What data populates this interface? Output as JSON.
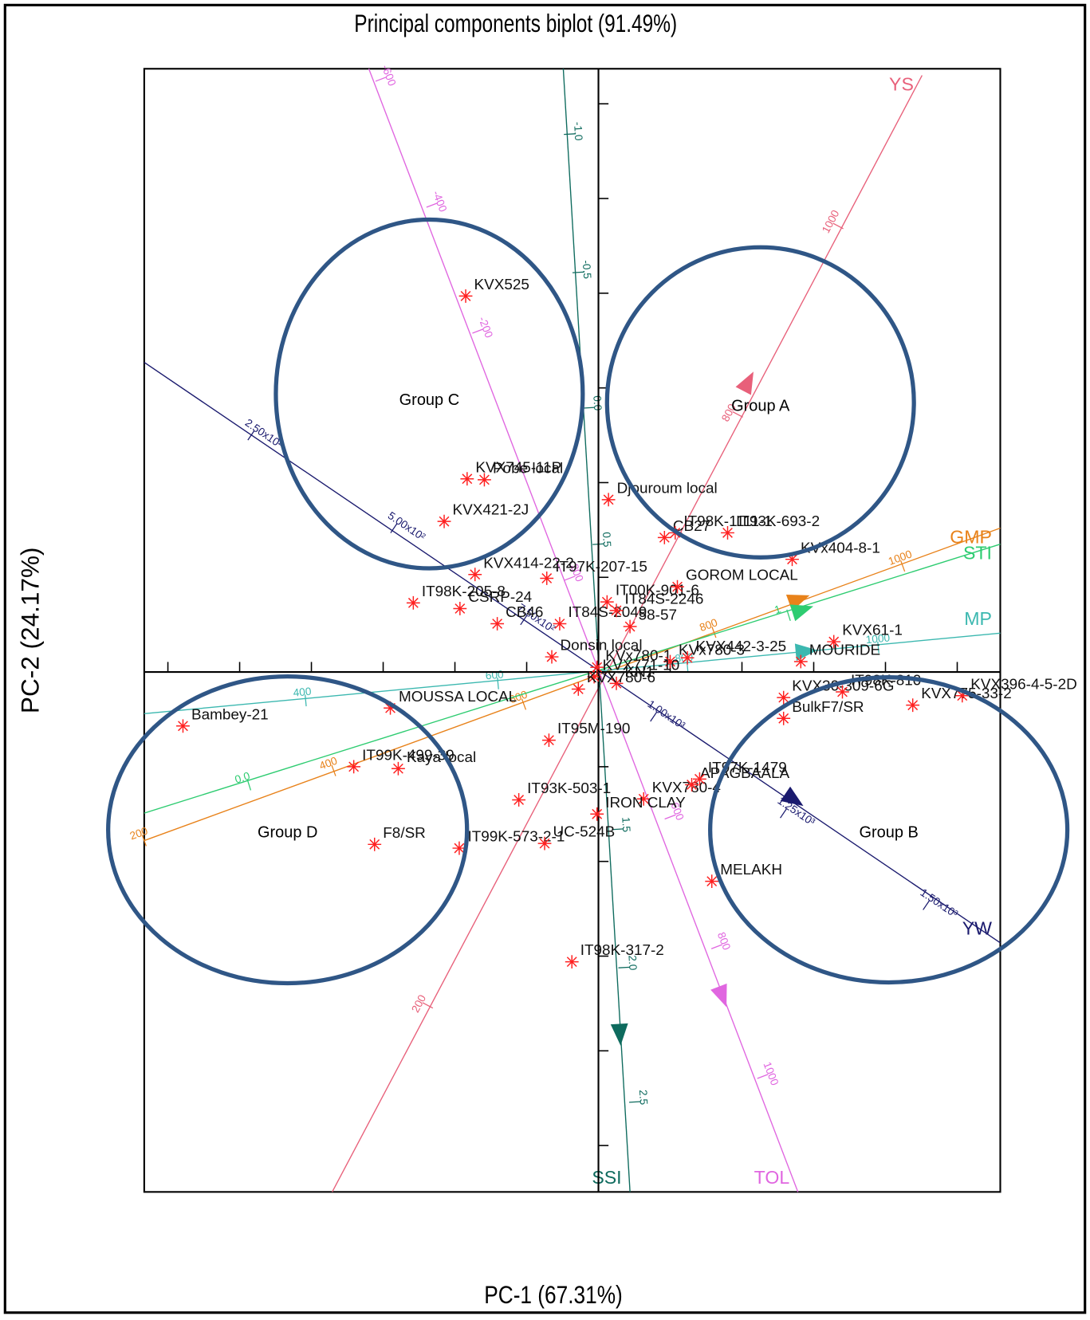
{
  "chart_data": {
    "type": "biplot",
    "title": "Principal components biplot (91.49%)",
    "x_label": "PC-1 (67.31%)",
    "y_label": "PC-2 (24.17%)",
    "xlim": [
      -6.33,
      5.6
    ],
    "ylim": [
      -5.49,
      6.37
    ],
    "xticks": [
      -6,
      -5,
      -4,
      -3,
      -2,
      -1,
      1,
      2,
      3,
      4,
      5
    ],
    "yticks": [
      -5,
      -4,
      -3,
      -2,
      -1,
      1,
      2,
      3,
      4,
      5,
      6
    ],
    "point_color": "#ff2020",
    "points": [
      {
        "label": "KVX525",
        "x": -1.85,
        "y": 3.97
      },
      {
        "label": "KVX745-11P",
        "x": -1.83,
        "y": 2.04
      },
      {
        "label": "Pobe local",
        "x": -1.59,
        "y": 2.03
      },
      {
        "label": "KVX421-2J",
        "x": -2.15,
        "y": 1.59
      },
      {
        "label": "KVX414-22-2",
        "x": -1.72,
        "y": 1.03
      },
      {
        "label": "IT97K-207-15",
        "x": -0.72,
        "y": 0.99
      },
      {
        "label": "IT98K-205-8",
        "x": -2.58,
        "y": 0.73
      },
      {
        "label": "CSRP-24",
        "x": -1.93,
        "y": 0.67
      },
      {
        "label": "CB46",
        "x": -1.41,
        "y": 0.51
      },
      {
        "label": "IT84S-2049",
        "x": -0.54,
        "y": 0.51
      },
      {
        "label": "IT00K-901-6",
        "x": 0.12,
        "y": 0.74
      },
      {
        "label": "IT84S-2246",
        "x": 0.25,
        "y": 0.65
      },
      {
        "label": "GOROM LOCAL",
        "x": 1.1,
        "y": 0.9
      },
      {
        "label": "58-57",
        "x": 0.44,
        "y": 0.48
      },
      {
        "label": "Donsin local",
        "x": -0.65,
        "y": 0.16
      },
      {
        "label": "Djouroum local",
        "x": 0.14,
        "y": 1.82
      },
      {
        "label": "CB27",
        "x": 0.92,
        "y": 1.42
      },
      {
        "label": "IT98K-1111-1",
        "x": 1.07,
        "y": 1.47
      },
      {
        "label": "IT93K-693-2",
        "x": 1.8,
        "y": 1.47
      },
      {
        "label": "KVx404-8-1",
        "x": 2.7,
        "y": 1.19
      },
      {
        "label": "KVX61-1",
        "x": 3.28,
        "y": 0.32
      },
      {
        "label": "MOURIDE",
        "x": 2.82,
        "y": 0.11
      },
      {
        "label": "KVx780-1",
        "x": -0.02,
        "y": 0.05
      },
      {
        "label": "KVx780-3",
        "x": 1.0,
        "y": 0.11
      },
      {
        "label": "KVX442-3-25",
        "x": 1.24,
        "y": 0.15
      },
      {
        "label": "KVX771-10",
        "x": -0.06,
        "y": -0.05
      },
      {
        "label": "KN1",
        "x": 0.25,
        "y": -0.12
      },
      {
        "label": "KVX30-309-6G",
        "x": 2.58,
        "y": -0.27
      },
      {
        "label": "IT98K-810",
        "x": 3.4,
        "y": -0.21
      },
      {
        "label": "BulkF7/SR",
        "x": 2.58,
        "y": -0.49
      },
      {
        "label": "KVX775-33-2",
        "x": 4.38,
        "y": -0.35
      },
      {
        "label": "KVX396-4-5-2D",
        "x": 5.07,
        "y": -0.25
      },
      {
        "label": "KVX780-6",
        "x": -0.28,
        "y": -0.18
      },
      {
        "label": "IT95M-190",
        "x": -0.69,
        "y": -0.72
      },
      {
        "label": "MOUSSA LOCAL",
        "x": -2.9,
        "y": -0.38
      },
      {
        "label": "Bambey-21",
        "x": -5.79,
        "y": -0.57
      },
      {
        "label": "IT99K-499-39",
        "x": -3.41,
        "y": -1.0
      },
      {
        "label": "Kaya local",
        "x": -2.79,
        "y": -1.02
      },
      {
        "label": "F8/SR",
        "x": -3.12,
        "y": -1.82
      },
      {
        "label": "IT99K-573-2-1",
        "x": -1.94,
        "y": -1.86
      },
      {
        "label": "UC-524B",
        "x": -0.75,
        "y": -1.81
      },
      {
        "label": "IT93K-503-1",
        "x": -1.11,
        "y": -1.35
      },
      {
        "label": "KVX780-4",
        "x": 0.63,
        "y": -1.34
      },
      {
        "label": "IRON CLAY",
        "x": -0.02,
        "y": -1.5
      },
      {
        "label": "APAGBAALA",
        "x": 1.3,
        "y": -1.19
      },
      {
        "label": "IT97K-1479",
        "x": 1.41,
        "y": -1.13
      },
      {
        "label": "MELAKH",
        "x": 1.58,
        "y": -2.21
      },
      {
        "label": "IT98K-317-2",
        "x": -0.37,
        "y": -3.06
      }
    ],
    "vectors": [
      {
        "name": "YS",
        "color": "#e8607a",
        "start": [
          -3.71,
          -5.49
        ],
        "end": [
          4.51,
          6.3
        ],
        "arrow": [
          2.09,
          3.07
        ],
        "ticks": [
          {
            "value": 200,
            "at": [
              -2.38,
              -3.52
            ]
          },
          {
            "value": 800,
            "at": [
              1.94,
              2.72
            ]
          },
          {
            "value": 1000,
            "at": [
              3.34,
              4.71
            ]
          }
        ]
      },
      {
        "name": "GMP",
        "color": "#e8821a",
        "start": [
          -6.33,
          -1.78
        ],
        "end": [
          5.6,
          1.52
        ],
        "arrow": [
          2.8,
          0.77
        ],
        "ticks": [
          {
            "value": 200,
            "at": [
              -6.33,
              -1.78
            ]
          },
          {
            "value": 400,
            "at": [
              -3.69,
              -1.04
            ]
          },
          {
            "value": 600,
            "at": [
              -1.04,
              -0.34
            ]
          },
          {
            "value": 800,
            "at": [
              1.61,
              0.42
            ]
          },
          {
            "value": 1000,
            "at": [
              4.24,
              1.12
            ]
          }
        ]
      },
      {
        "name": "STI",
        "color": "#2ecc71",
        "start": [
          -6.33,
          -1.49
        ],
        "end": [
          5.6,
          1.35
        ],
        "arrow": [
          2.85,
          0.66
        ],
        "ticks": [
          {
            "value": 0.0,
            "label": "0.0",
            "at": [
              -4.87,
              -1.19
            ]
          },
          {
            "value": 1,
            "at": [
              2.65,
              0.6
            ]
          }
        ]
      },
      {
        "name": "MP",
        "color": "#3cb8b0",
        "start": [
          -6.33,
          -0.44
        ],
        "end": [
          5.6,
          0.41
        ],
        "arrow": [
          2.9,
          0.22
        ],
        "ticks": [
          {
            "value": 400,
            "at": [
              -4.08,
              -0.3
            ]
          },
          {
            "value": 600,
            "at": [
              -1.4,
              -0.12
            ]
          },
          {
            "value": 800,
            "at": [
              1.24,
              0.06
            ]
          },
          {
            "value": 1000,
            "at": [
              3.9,
              0.26
            ]
          }
        ]
      },
      {
        "name": "YW",
        "color": "#1a1a6e",
        "start": [
          -6.33,
          3.27
        ],
        "end": [
          5.6,
          -2.86
        ],
        "arrow": [
          2.73,
          -1.35
        ],
        "ticks": [
          {
            "value": 250,
            "label": "2.50x10²",
            "at": [
              -4.84,
              2.5
            ]
          },
          {
            "value": 500,
            "label": "5.00x10²",
            "at": [
              -2.85,
              1.52
            ]
          },
          {
            "value": 750,
            "label": "7.50x10²",
            "at": [
              -1.04,
              0.55
            ]
          },
          {
            "value": 1000,
            "label": "1.00x10³",
            "at": [
              0.77,
              -0.47
            ]
          },
          {
            "value": 1250,
            "label": "1.25x10³",
            "at": [
              2.58,
              -1.49
            ]
          },
          {
            "value": 1500,
            "label": "1.50x10³",
            "at": [
              4.57,
              -2.46
            ]
          }
        ]
      },
      {
        "name": "SSI",
        "color": "#0e6b5e",
        "start": [
          -0.49,
          6.37
        ],
        "end": [
          0.44,
          -5.49
        ],
        "arrow": [
          0.3,
          -3.83
        ],
        "ticks": [
          {
            "value": -1.0,
            "label": "-1.0",
            "at": [
              -0.4,
              5.68
            ]
          },
          {
            "value": -0.5,
            "at": [
              -0.28,
              4.22
            ]
          },
          {
            "value": 0.0,
            "label": "0.0",
            "at": [
              -0.13,
              2.79
            ]
          },
          {
            "value": 0.5,
            "at": [
              0.0,
              1.35
            ]
          },
          {
            "value": 1.5,
            "at": [
              0.27,
              -1.66
            ]
          },
          {
            "value": 2.0,
            "label": "2.0",
            "at": [
              0.36,
              -3.12
            ]
          },
          {
            "value": 2.5,
            "at": [
              0.51,
              -4.54
            ]
          }
        ]
      },
      {
        "name": "TOL",
        "color": "#e066e0",
        "start": [
          -3.2,
          6.37
        ],
        "end": [
          2.78,
          -5.49
        ],
        "arrow": [
          1.73,
          -3.43
        ],
        "ticks": [
          {
            "value": -600,
            "at": [
              -3.03,
              6.26
            ]
          },
          {
            "value": -400,
            "at": [
              -2.32,
              4.93
            ]
          },
          {
            "value": -200,
            "at": [
              -1.68,
              3.6
            ]
          },
          {
            "value": 200,
            "at": [
              -0.4,
              0.99
            ]
          },
          {
            "value": 600,
            "at": [
              1.0,
              -1.53
            ]
          },
          {
            "value": 800,
            "at": [
              1.65,
              -2.9
            ]
          },
          {
            "value": 1000,
            "at": [
              2.29,
              -4.27
            ]
          }
        ]
      }
    ],
    "groups": [
      "Group A",
      "Group B",
      "Group C",
      "Group D"
    ]
  }
}
